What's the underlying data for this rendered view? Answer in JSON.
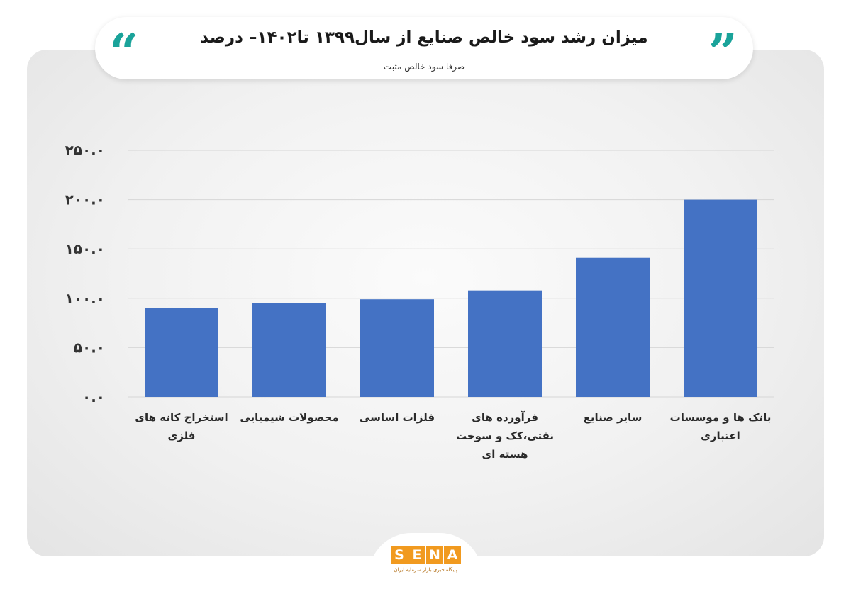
{
  "header": {
    "title": "میزان رشد سود خالص صنایع  از سال۱۳۹۹ تا۱۴۰۲– درصد",
    "subtitle": "صرفا سود خالص مثبت",
    "quote_left": "“",
    "quote_right": "”"
  },
  "colors": {
    "bar": "#4472c4",
    "accent": "#1aa39a",
    "grid": "#d6d6d6",
    "logo": "#f19a1f"
  },
  "chart_data": {
    "type": "bar",
    "title": "میزان رشد سود خالص صنایع  از سال۱۳۹۹ تا۱۴۰۲– درصد",
    "subtitle": "صرفا سود خالص مثبت",
    "categories": [
      "استخراج کانه های فلزی",
      "محصولات شیمیایی",
      "فلزات اساسی",
      "فرآورده های نفتی،کک و سوخت هسته ای",
      "سایر صنایع",
      "بانک ها  و موسسات اعتباری"
    ],
    "values": [
      90,
      95,
      99,
      108,
      141,
      200
    ],
    "ylim": [
      0,
      250
    ],
    "yticks": [
      0,
      50,
      100,
      150,
      200,
      250
    ],
    "ytick_labels": [
      "۰.۰",
      "۵۰.۰",
      "۱۰۰.۰",
      "۱۵۰.۰",
      "۲۰۰.۰",
      "۲۵۰.۰"
    ],
    "grid": true,
    "legend": "none"
  },
  "footer": {
    "logo_letters": [
      "S",
      "E",
      "N",
      "A"
    ],
    "logo_tagline": "پایگاه خبری بازار سرمایه ایران"
  }
}
